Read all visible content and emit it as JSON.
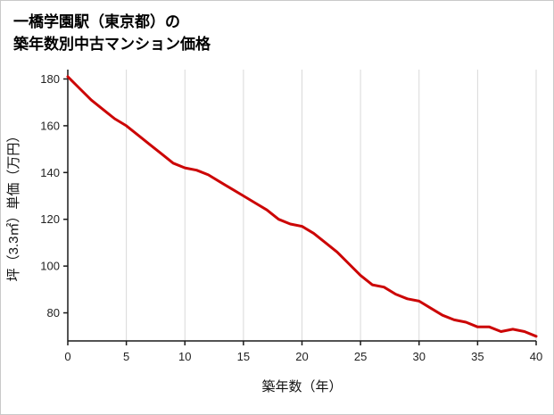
{
  "header": {
    "title_line1": "一橋学園駅（東京都）の",
    "title_line2": "築年数別中古マンション価格"
  },
  "chart_data": {
    "type": "line",
    "title": "一橋学園駅（東京都）の築年数別中古マンション価格",
    "xlabel": "築年数（年）",
    "ylabel": "坪（3.3㎡）単価（万円）",
    "x": [
      0,
      1,
      2,
      3,
      4,
      5,
      6,
      7,
      8,
      9,
      10,
      11,
      12,
      13,
      14,
      15,
      16,
      17,
      18,
      19,
      20,
      21,
      22,
      23,
      24,
      25,
      26,
      27,
      28,
      29,
      30,
      31,
      32,
      33,
      34,
      35,
      36,
      37,
      38,
      39,
      40
    ],
    "values": [
      181,
      176,
      171,
      167,
      163,
      160,
      156,
      152,
      148,
      144,
      142,
      141,
      139,
      136,
      133,
      130,
      127,
      124,
      120,
      118,
      117,
      114,
      110,
      106,
      101,
      96,
      92,
      91,
      88,
      86,
      85,
      82,
      79,
      77,
      76,
      74,
      74,
      72,
      73,
      72,
      70
    ],
    "x_ticks": [
      0,
      5,
      10,
      15,
      20,
      25,
      30,
      35,
      40
    ],
    "y_ticks": [
      80,
      100,
      120,
      140,
      160,
      180
    ],
    "xlim": [
      0,
      40
    ],
    "ylim": [
      68,
      184
    ],
    "grid": "vertical",
    "line_color": "#cc0505",
    "grid_color": "#d9d9d9",
    "axis_color": "#1a1a1a",
    "legend": "none"
  }
}
